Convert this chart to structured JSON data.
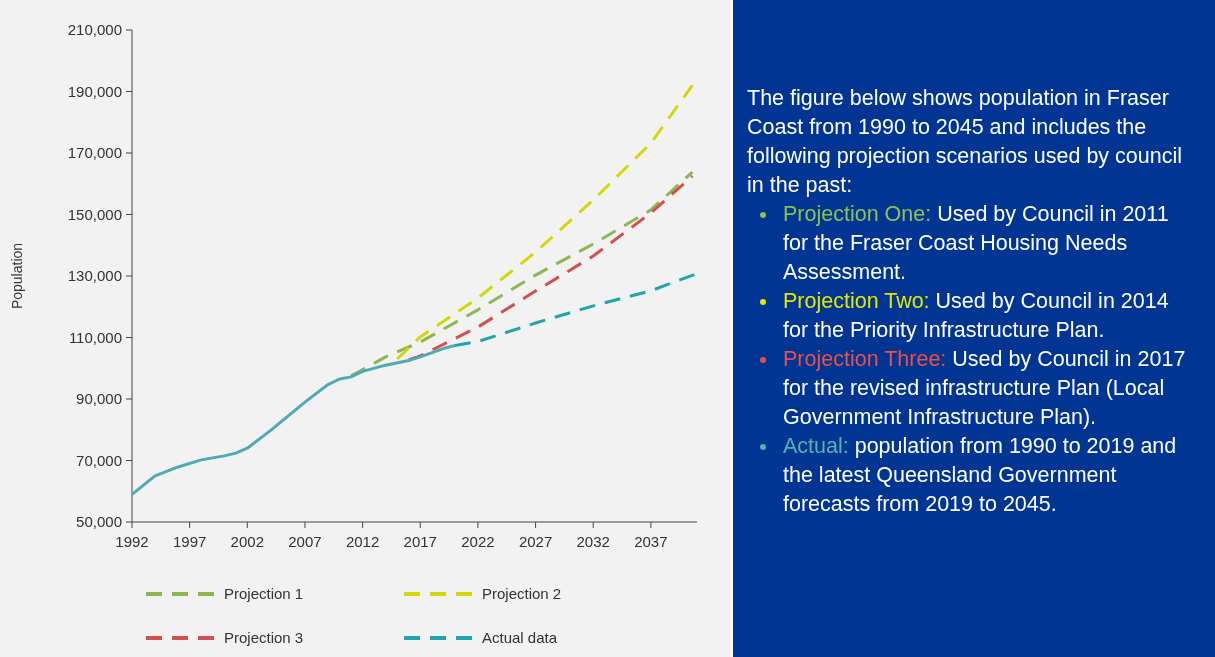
{
  "chart_data": [
    {
      "type": "line",
      "ylabel": "Population",
      "xlim": [
        1992,
        2041
      ],
      "xticks": [
        1992,
        1997,
        2002,
        2007,
        2012,
        2017,
        2022,
        2027,
        2032,
        2037
      ],
      "ylim": [
        50000,
        210000
      ],
      "yticks": [
        {
          "value": 50000,
          "label": "50,000"
        },
        {
          "value": 70000,
          "label": "70,000"
        },
        {
          "value": 90000,
          "label": "90,000"
        },
        {
          "value": 110000,
          "label": "110,000"
        },
        {
          "value": 130000,
          "label": "130,000"
        },
        {
          "value": 150000,
          "label": "150,000"
        },
        {
          "value": 170000,
          "label": "170,000"
        },
        {
          "value": 190000,
          "label": "190,000"
        },
        {
          "value": 210000,
          "label": "210,000"
        }
      ],
      "legend": "bottom",
      "series": [
        {
          "name": "Projection 1",
          "color": "#8cb852",
          "line_style": "dashed",
          "x": [
            2011,
            2014,
            2017,
            2022,
            2027,
            2032,
            2037,
            2040.6
          ],
          "values": [
            97500,
            103700,
            108500,
            119000,
            130300,
            140400,
            151500,
            163800
          ]
        },
        {
          "name": "Projection 2",
          "color": "#d2d80a",
          "line_style": "dashed",
          "x": [
            2015,
            2017,
            2022,
            2027,
            2032,
            2037,
            2040.6
          ],
          "values": [
            103000,
            110200,
            122800,
            137800,
            154700,
            173200,
            192000
          ]
        },
        {
          "name": "Projection 3",
          "color": "#d4504c",
          "line_style": "dashed",
          "x": [
            2016,
            2017,
            2022,
            2027,
            2032,
            2037,
            2040.6
          ],
          "values": [
            102700,
            104000,
            113400,
            125100,
            136500,
            150500,
            162500
          ]
        },
        {
          "color": "#4fa9b6",
          "line_style": "solid",
          "x": [
            1992,
            1994,
            1996,
            1998,
            2000,
            2001,
            2002,
            2004,
            2007,
            2009,
            2010,
            2011,
            2012,
            2014,
            2016,
            2017,
            2019,
            2020
          ],
          "values": [
            59000,
            65000,
            67900,
            70200,
            71500,
            72400,
            74000,
            79700,
            89000,
            94700,
            96500,
            97200,
            99000,
            101000,
            102500,
            103700,
            106400,
            107400
          ]
        },
        {
          "name": "Actual data",
          "color": "#1ea5ad",
          "line_style": "dashed",
          "x": [
            2020,
            2022,
            2027,
            2032,
            2037,
            2041
          ],
          "values": [
            107400,
            108700,
            114700,
            120300,
            125200,
            130800
          ]
        }
      ]
    },
    {
      "type": "other",
      "annotations": [
        "The figure below shows population in Fraser Coast from 1990 to 2045 and includes the following projection scenarios used by council in the past:",
        "Projection One: Used by Council in 2011 for the Fraser Coast Housing Needs Assessment.",
        "Projection Two: Used by Council in 2014 for the Priority Infrastructure Plan.",
        "Projection Three: Used by Council in 2017 for the revised infrastructure Plan (Local Government Infrastructure Plan).",
        "Actual: population from 1990 to 2019 and the latest Queensland Government forecasts from 2019 to 2045."
      ],
      "colors": [
        null,
        "#8cc152",
        "#e2e600",
        "#e8504a",
        "#4fb3b0"
      ]
    }
  ]
}
